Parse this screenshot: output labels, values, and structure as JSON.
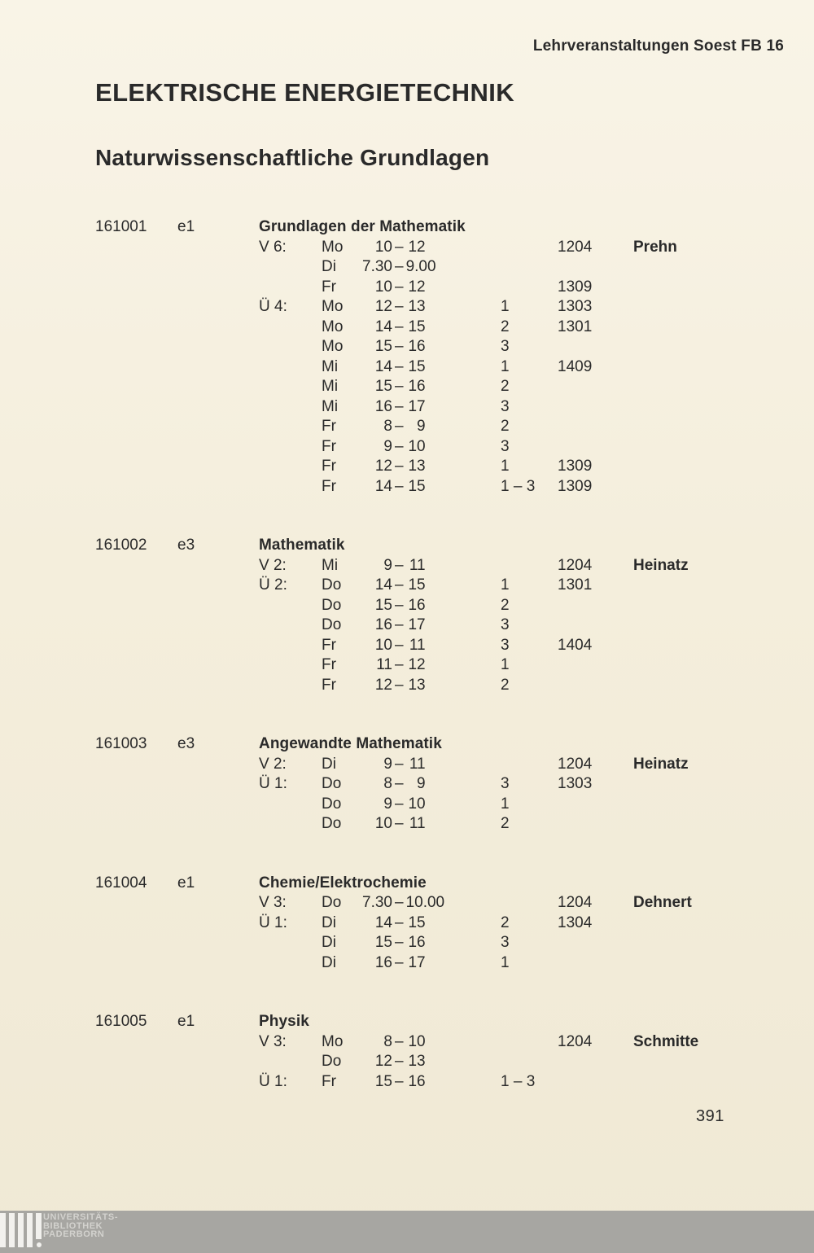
{
  "header": {
    "running_title": "Lehrveranstaltungen Soest FB 16",
    "department_title": "ELEKTRISCHE ENERGIETECHNIK",
    "section_title": "Naturwissenschaftliche Grundlagen"
  },
  "ui": {
    "time_separator": "–"
  },
  "colors": {
    "paper": "#f4eedc",
    "ink": "#2a2a2a",
    "footer_bar": "#a7a6a2"
  },
  "courses": [
    {
      "number": "161001",
      "code": "e1",
      "title": "Grundlagen der Mathematik",
      "sessions": [
        {
          "label": "V 6:",
          "day": "Mo",
          "start": "10",
          "end": "12",
          "group": "",
          "room": "1204",
          "lecturer": "Prehn"
        },
        {
          "label": "",
          "day": "Di",
          "start": "7.30",
          "end": "9.00",
          "group": "",
          "room": "",
          "lecturer": ""
        },
        {
          "label": "",
          "day": "Fr",
          "start": "10",
          "end": "12",
          "group": "",
          "room": "1309",
          "lecturer": ""
        },
        {
          "label": "Ü 4:",
          "day": "Mo",
          "start": "12",
          "end": "13",
          "group": "1",
          "room": "1303",
          "lecturer": ""
        },
        {
          "label": "",
          "day": "Mo",
          "start": "14",
          "end": "15",
          "group": "2",
          "room": "1301",
          "lecturer": ""
        },
        {
          "label": "",
          "day": "Mo",
          "start": "15",
          "end": "16",
          "group": "3",
          "room": "",
          "lecturer": ""
        },
        {
          "label": "",
          "day": "Mi",
          "start": "14",
          "end": "15",
          "group": "1",
          "room": "1409",
          "lecturer": ""
        },
        {
          "label": "",
          "day": "Mi",
          "start": "15",
          "end": "16",
          "group": "2",
          "room": "",
          "lecturer": ""
        },
        {
          "label": "",
          "day": "Mi",
          "start": "16",
          "end": "17",
          "group": "3",
          "room": "",
          "lecturer": ""
        },
        {
          "label": "",
          "day": "Fr",
          "start": "8",
          "end": "9",
          "group": "2",
          "room": "",
          "lecturer": ""
        },
        {
          "label": "",
          "day": "Fr",
          "start": "9",
          "end": "10",
          "group": "3",
          "room": "",
          "lecturer": ""
        },
        {
          "label": "",
          "day": "Fr",
          "start": "12",
          "end": "13",
          "group": "1",
          "room": "1309",
          "lecturer": ""
        },
        {
          "label": "",
          "day": "Fr",
          "start": "14",
          "end": "15",
          "group": "1 – 3",
          "room": "1309",
          "lecturer": ""
        }
      ]
    },
    {
      "number": "161002",
      "code": "e3",
      "title": "Mathematik",
      "sessions": [
        {
          "label": "V 2:",
          "day": "Mi",
          "start": "9",
          "end": "11",
          "group": "",
          "room": "1204",
          "lecturer": "Heinatz"
        },
        {
          "label": "Ü 2:",
          "day": "Do",
          "start": "14",
          "end": "15",
          "group": "1",
          "room": "1301",
          "lecturer": ""
        },
        {
          "label": "",
          "day": "Do",
          "start": "15",
          "end": "16",
          "group": "2",
          "room": "",
          "lecturer": ""
        },
        {
          "label": "",
          "day": "Do",
          "start": "16",
          "end": "17",
          "group": "3",
          "room": "",
          "lecturer": ""
        },
        {
          "label": "",
          "day": "Fr",
          "start": "10",
          "end": "11",
          "group": "3",
          "room": "1404",
          "lecturer": ""
        },
        {
          "label": "",
          "day": "Fr",
          "start": "11",
          "end": "12",
          "group": "1",
          "room": "",
          "lecturer": ""
        },
        {
          "label": "",
          "day": "Fr",
          "start": "12",
          "end": "13",
          "group": "2",
          "room": "",
          "lecturer": ""
        }
      ]
    },
    {
      "number": "161003",
      "code": "e3",
      "title": "Angewandte Mathematik",
      "sessions": [
        {
          "label": "V 2:",
          "day": "Di",
          "start": "9",
          "end": "11",
          "group": "",
          "room": "1204",
          "lecturer": "Heinatz"
        },
        {
          "label": "Ü 1:",
          "day": "Do",
          "start": "8",
          "end": "9",
          "group": "3",
          "room": "1303",
          "lecturer": ""
        },
        {
          "label": "",
          "day": "Do",
          "start": "9",
          "end": "10",
          "group": "1",
          "room": "",
          "lecturer": ""
        },
        {
          "label": "",
          "day": "Do",
          "start": "10",
          "end": "11",
          "group": "2",
          "room": "",
          "lecturer": ""
        }
      ]
    },
    {
      "number": "161004",
      "code": "e1",
      "title": "Chemie/Elektrochemie",
      "sessions": [
        {
          "label": "V 3:",
          "day": "Do",
          "start": "7.30",
          "end": "10.00",
          "group": "",
          "room": "1204",
          "lecturer": "Dehnert"
        },
        {
          "label": "Ü 1:",
          "day": "Di",
          "start": "14",
          "end": "15",
          "group": "2",
          "room": "1304",
          "lecturer": ""
        },
        {
          "label": "",
          "day": "Di",
          "start": "15",
          "end": "16",
          "group": "3",
          "room": "",
          "lecturer": ""
        },
        {
          "label": "",
          "day": "Di",
          "start": "16",
          "end": "17",
          "group": "1",
          "room": "",
          "lecturer": ""
        }
      ]
    },
    {
      "number": "161005",
      "code": "e1",
      "title": "Physik",
      "sessions": [
        {
          "label": "V 3:",
          "day": "Mo",
          "start": "8",
          "end": "10",
          "group": "",
          "room": "1204",
          "lecturer": "Schmitte"
        },
        {
          "label": "",
          "day": "Do",
          "start": "12",
          "end": "13",
          "group": "",
          "room": "",
          "lecturer": ""
        },
        {
          "label": "Ü 1:",
          "day": "Fr",
          "start": "15",
          "end": "16",
          "group": "1 – 3",
          "room": "",
          "lecturer": ""
        }
      ]
    }
  ],
  "footer": {
    "page_number": "391",
    "library_lines": [
      "UNIVERSITÄTS-",
      "BIBLIOTHEK",
      "PADERBORN"
    ]
  }
}
